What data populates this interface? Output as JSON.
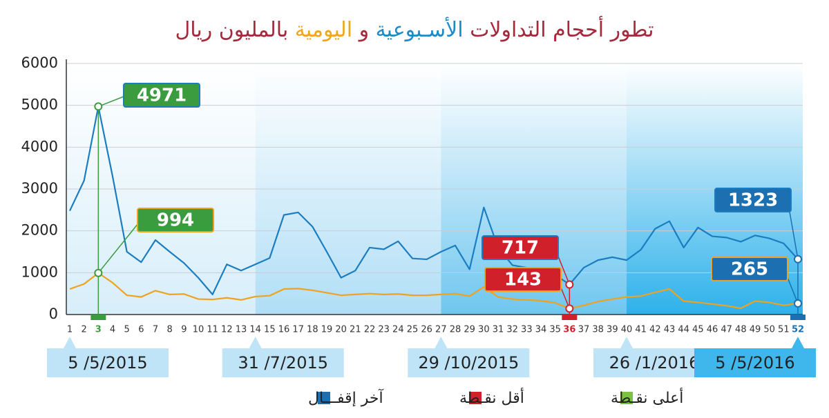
{
  "chart_data": {
    "type": "line",
    "title_parts": [
      {
        "text": "تطور أحجام التداولات ",
        "color": "#a3293b"
      },
      {
        "text": "الأسـبوعية",
        "color": "#1b8ac8"
      },
      {
        "text": " و ",
        "color": "#a3293b"
      },
      {
        "text": "اليومية",
        "color": "#f2a51a"
      },
      {
        "text": " بالمليون ريال",
        "color": "#a3293b"
      }
    ],
    "x": [
      1,
      2,
      3,
      4,
      5,
      6,
      7,
      8,
      9,
      10,
      11,
      12,
      13,
      14,
      15,
      16,
      17,
      18,
      19,
      20,
      21,
      22,
      23,
      24,
      25,
      26,
      27,
      28,
      29,
      30,
      31,
      32,
      33,
      34,
      35,
      36,
      37,
      38,
      39,
      40,
      41,
      42,
      43,
      44,
      45,
      46,
      47,
      48,
      49,
      50,
      51,
      52
    ],
    "xlim": [
      1,
      52
    ],
    "series": [
      {
        "color": "#1a7dc1",
        "values": [
          2480,
          3200,
          4971,
          3300,
          1500,
          1250,
          1780,
          1500,
          1230,
          880,
          480,
          1200,
          1050,
          1200,
          1350,
          2380,
          2440,
          2100,
          1500,
          880,
          1050,
          1600,
          1560,
          1750,
          1340,
          1320,
          1500,
          1650,
          1080,
          2560,
          1600,
          1180,
          1120,
          1100,
          950,
          717,
          1120,
          1300,
          1370,
          1300,
          1550,
          2050,
          2230,
          1600,
          2080,
          1870,
          1840,
          1740,
          1890,
          1820,
          1700,
          1323
        ]
      },
      {
        "color": "#f0a21e",
        "values": [
          610,
          730,
          994,
          760,
          460,
          420,
          570,
          480,
          490,
          370,
          360,
          400,
          350,
          430,
          450,
          610,
          620,
          580,
          520,
          460,
          480,
          500,
          480,
          490,
          460,
          460,
          480,
          500,
          440,
          660,
          420,
          370,
          350,
          330,
          280,
          143,
          220,
          310,
          370,
          420,
          440,
          530,
          610,
          320,
          290,
          250,
          210,
          150,
          320,
          290,
          220,
          265
        ]
      }
    ],
    "ylim": [
      0,
      6000
    ],
    "yticks": [
      0,
      1000,
      2000,
      3000,
      4000,
      5000,
      6000
    ],
    "grid": true,
    "markers": [
      {
        "x": 3,
        "color": "#3a9b3f"
      },
      {
        "x": 36,
        "color": "#d0202a"
      },
      {
        "x": 52,
        "color": "#1c6fb0"
      }
    ],
    "date_labels": [
      {
        "x": 1,
        "label": "5 /5/2015"
      },
      {
        "x": 14,
        "label": "31 /7/2015"
      },
      {
        "x": 27,
        "label": "29 /10/2015"
      },
      {
        "x": 40,
        "label": "26 /1/2016"
      },
      {
        "x": 52,
        "label": "5 /5/2016"
      }
    ],
    "legend": [
      {
        "label": "آخر إقفـــال",
        "color": "#1c6fb0"
      },
      {
        "label": "أقل نقـطة",
        "color": "#d0202a"
      },
      {
        "label": "أعلى نقـطة",
        "color": "#7cc242"
      }
    ]
  }
}
